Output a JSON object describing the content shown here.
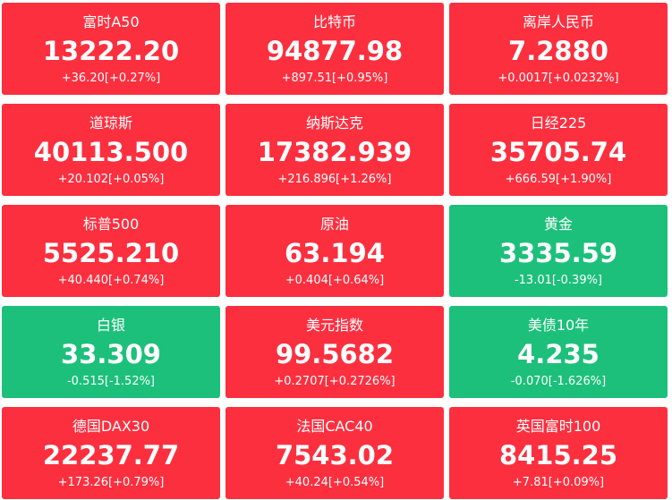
{
  "tiles": [
    {
      "name": "富时A50",
      "price": "13222.20",
      "change": "+36.20[+0.27%]",
      "color": "#fc2f3f"
    },
    {
      "name": "比特币",
      "price": "94877.98",
      "change": "+897.51[+0.95%]",
      "color": "#fc2f3f"
    },
    {
      "name": "离岸人民币",
      "price": "7.2880",
      "change": "+0.0017[+0.0232%]",
      "color": "#fc2f3f"
    },
    {
      "name": "道琼斯",
      "price": "40113.500",
      "change": "+20.102[+0.05%]",
      "color": "#fc2f3f"
    },
    {
      "name": "纳斯达克",
      "price": "17382.939",
      "change": "+216.896[+1.26%]",
      "color": "#fc2f3f"
    },
    {
      "name": "日经225",
      "price": "35705.74",
      "change": "+666.59[+1.90%]",
      "color": "#fc2f3f"
    },
    {
      "name": "标普500",
      "price": "5525.210",
      "change": "+40.440[+0.74%]",
      "color": "#fc2f3f"
    },
    {
      "name": "原油",
      "price": "63.194",
      "change": "+0.404[+0.64%]",
      "color": "#fc2f3f"
    },
    {
      "name": "黄金",
      "price": "3335.59",
      "change": "-13.01[-0.39%]",
      "color": "#1cc07b"
    },
    {
      "name": "白银",
      "price": "33.309",
      "change": "-0.515[-1.52%]",
      "color": "#1cc07b"
    },
    {
      "name": "美元指数",
      "price": "99.5682",
      "change": "+0.2707[+0.2726%]",
      "color": "#fc2f3f"
    },
    {
      "name": "美债10年",
      "price": "4.235",
      "change": "-0.070[-1.626%]",
      "color": "#1cc07b"
    },
    {
      "name": "德国DAX30",
      "price": "22237.77",
      "change": "+173.26[+0.79%]",
      "color": "#fc2f3f"
    },
    {
      "name": "法国CAC40",
      "price": "7543.02",
      "change": "+40.24[+0.54%]",
      "color": "#fc2f3f"
    },
    {
      "name": "英国富时100",
      "price": "8415.25",
      "change": "+7.81[+0.09%]",
      "color": "#fc2f3f"
    }
  ]
}
